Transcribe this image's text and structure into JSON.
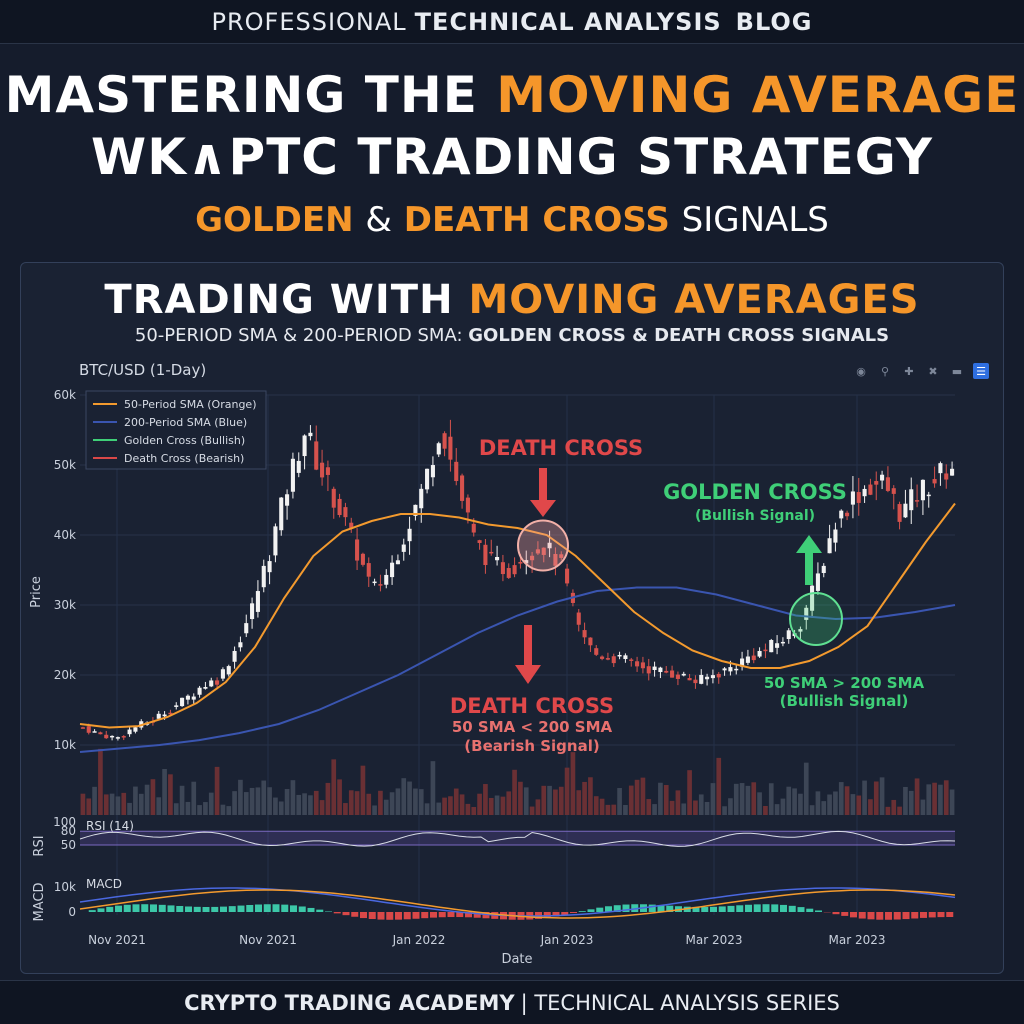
{
  "header": {
    "brand_light": "PROFESSIONAL",
    "brand_bold": "TECHNICAL ANALYSIS",
    "brand_tail": "BLOG"
  },
  "title": {
    "line1_white": "MASTERING THE",
    "line1_orange": "MOVING AVERAGE",
    "line2": "WK∧PTC TRADING STRATEGY",
    "sub_orange1": "GOLDEN",
    "sub_amp": "&",
    "sub_orange2": "DEATH CROSS",
    "sub_white": "SIGNALS"
  },
  "panel": {
    "title_white": "TRADING WITH",
    "title_orange": "MOVING AVERAGES",
    "subtitle_plain": "50-PERIOD SMA & 200-PERIOD SMA:",
    "subtitle_bold": "GOLDEN CROSS & DEATH CROSS SIGNALS",
    "ticker": "BTC/USD (1-Day)",
    "toolbar": [
      "camera-icon",
      "zoom-icon",
      "pan-icon",
      "autoscale-icon",
      "reset-icon",
      "menu-icon"
    ]
  },
  "footer": {
    "bold": "CRYPTO TRADING ACADEMY",
    "rest": "| TECHNICAL ANALYSIS SERIES"
  },
  "chart_data": {
    "type": "line",
    "title": "BTC/USD (1-Day)",
    "xlabel": "Date",
    "ylabel": "Price",
    "x_ticks": [
      "Nov 2021",
      "Nov 2021",
      "Jan 2022",
      "Jan 2023",
      "Mar 2023",
      "Mar 2023"
    ],
    "y_ticks": [
      "10k",
      "20k",
      "30k",
      "40k",
      "50k",
      "60k"
    ],
    "ylim": [
      10000,
      60000
    ],
    "legend": [
      {
        "label": "50-Period SMA (Orange)",
        "color": "#f39a2e"
      },
      {
        "label": "200-Period SMA (Blue)",
        "color": "#3a55b0"
      },
      {
        "label": "Golden Cross (Bullish)",
        "color": "#3fcf78"
      },
      {
        "label": "Death Cross (Bearish)",
        "color": "#d94848"
      }
    ],
    "legend_position": "top-left",
    "price_path": [
      12500,
      11500,
      11000,
      12500,
      13500,
      15000,
      16500,
      18500,
      19500,
      24000,
      30000,
      38000,
      47000,
      55000,
      49000,
      44000,
      38000,
      32000,
      35000,
      41000,
      47000,
      56000,
      47000,
      39000,
      36000,
      35000,
      37500,
      38500,
      36000,
      27000,
      23000,
      22500,
      22000,
      21000,
      20500,
      20000,
      19000,
      20000,
      21000,
      22500,
      23500,
      25000,
      27000,
      33000,
      41000,
      45000,
      47000,
      47500,
      43000,
      46000,
      48000,
      50000
    ],
    "sma50": [
      13000,
      12500,
      12700,
      14000,
      16000,
      19000,
      24000,
      31000,
      37000,
      40500,
      42000,
      43000,
      43000,
      42500,
      41500,
      41000,
      40000,
      37000,
      33000,
      29000,
      26000,
      23500,
      22000,
      21000,
      21000,
      22000,
      24000,
      27000,
      33000,
      39000,
      44500
    ],
    "sma200": [
      9000,
      9500,
      10000,
      10700,
      11700,
      13000,
      15000,
      17500,
      20000,
      23000,
      26000,
      28500,
      30500,
      32000,
      32500,
      32500,
      31500,
      30000,
      28500,
      28000,
      28200,
      29000,
      30000
    ],
    "signals": [
      {
        "type": "death_cross",
        "label": "DEATH CROSS",
        "detail1": "50 SMA < 200 SMA",
        "detail2": "(Bearish Signal)",
        "price": 38500
      },
      {
        "type": "golden_cross",
        "label": "GOLDEN CROSS",
        "detail0": "(Bullish Signal)",
        "detail1": "50 SMA > 200 SMA",
        "detail2": "(Bullish Signal)",
        "price": 28000
      }
    ],
    "rsi": {
      "label": "RSI (14)",
      "ylabel": "RSI",
      "ticks": [
        "100",
        "80",
        "50"
      ],
      "band": [
        50,
        80
      ]
    },
    "macd": {
      "label": "MACD",
      "ylabel": "MACD",
      "ticks": [
        "10k",
        "0"
      ]
    },
    "colors": {
      "up": "#f2f2f2",
      "down": "#d6524d",
      "sma50": "#f39a2e",
      "sma200": "#3a55b0",
      "golden": "#3fcf78",
      "death": "#e0484a",
      "background": "#1a2233"
    }
  }
}
